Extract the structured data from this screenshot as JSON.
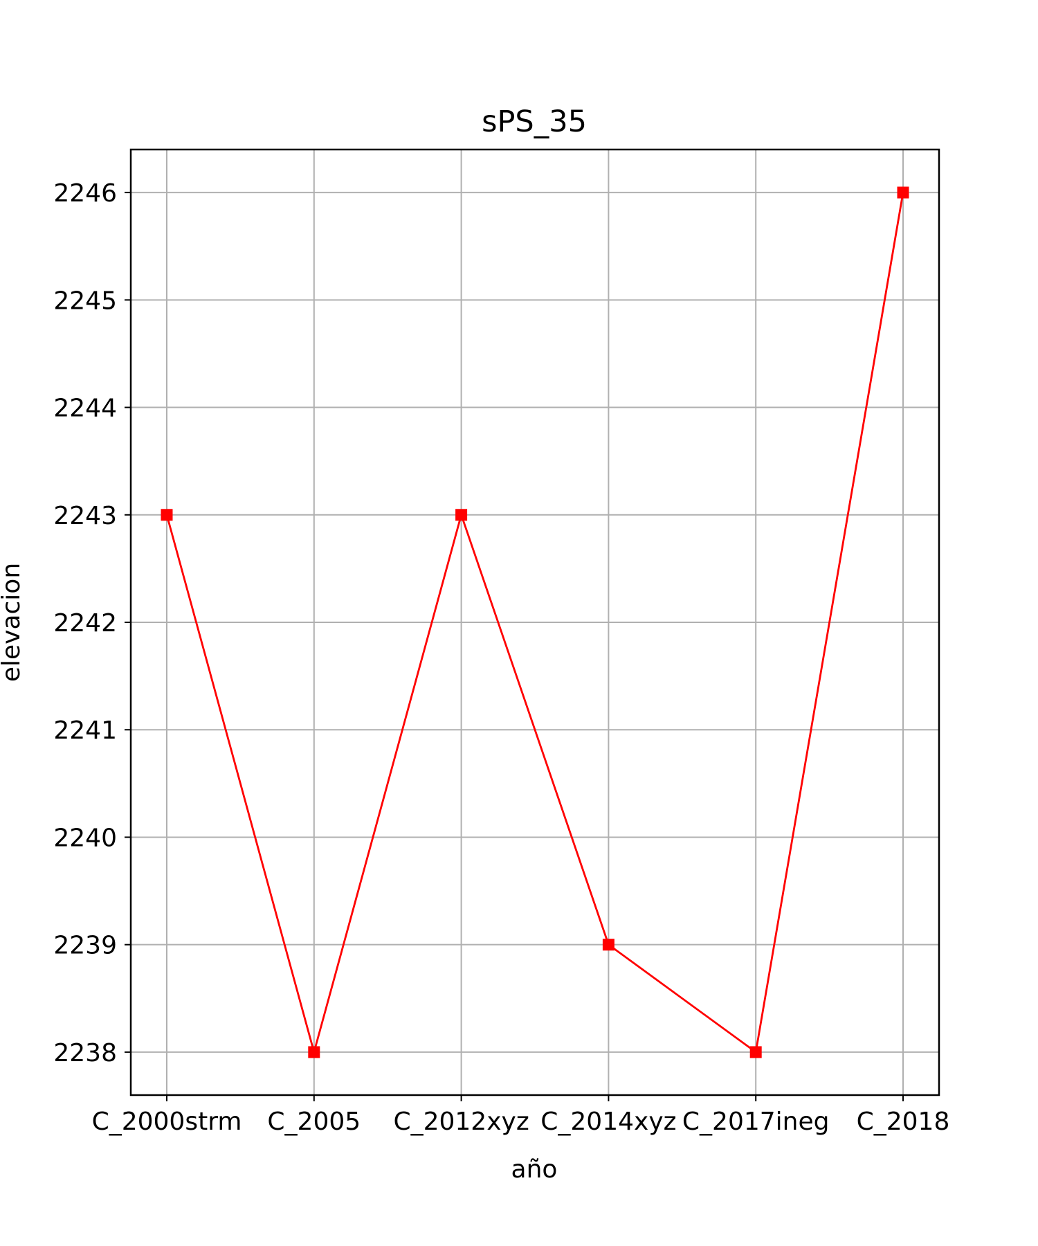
{
  "chart_data": {
    "type": "line",
    "title": "sPS_35",
    "xlabel": "año",
    "ylabel": "elevacion",
    "categories": [
      "C_2000strm",
      "C_2005",
      "C_2012xyz",
      "C_2014xyz",
      "C_2017ineg",
      "C_2018"
    ],
    "series": [
      {
        "values": [
          2243,
          2238,
          2243,
          2239,
          2238,
          2246
        ],
        "color": "#ff0000",
        "marker": "square"
      }
    ],
    "yticks": [
      2238,
      2239,
      2240,
      2241,
      2242,
      2243,
      2244,
      2245,
      2246
    ],
    "ylim": [
      2237.6,
      2246.4
    ],
    "grid": true,
    "colors": {
      "line": "#ff0000",
      "grid": "#b0b0b0",
      "axes": "#000000"
    }
  }
}
